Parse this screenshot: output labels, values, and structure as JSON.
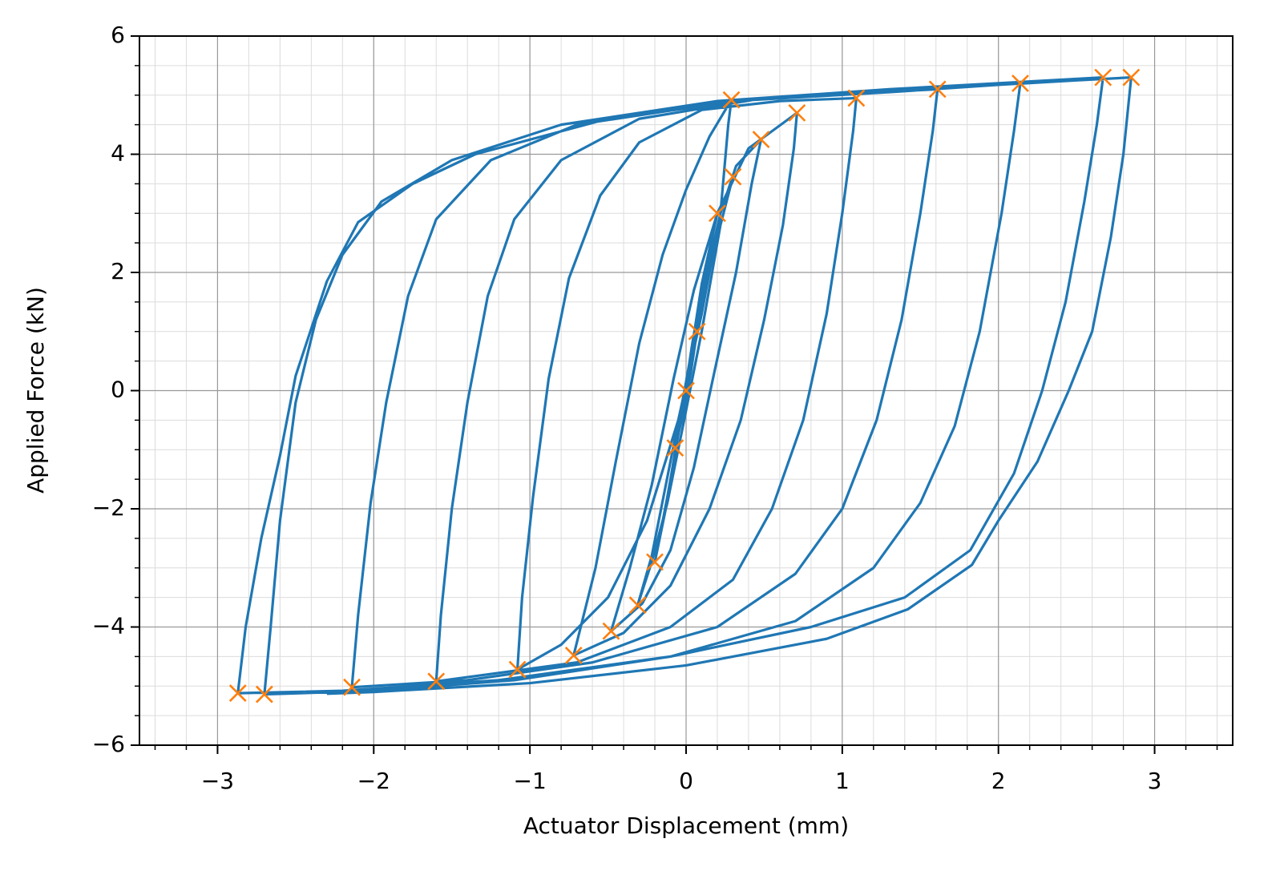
{
  "chart_data": {
    "type": "line",
    "xlabel": "Actuator Displacement (mm)",
    "ylabel": "Applied Force (kN)",
    "xlim": [
      -3.5,
      3.5
    ],
    "ylim": [
      -6,
      6
    ],
    "xticks": [
      {
        "value": -3,
        "label": "−3"
      },
      {
        "value": -2,
        "label": "−2"
      },
      {
        "value": -1,
        "label": "−1"
      },
      0,
      1,
      2,
      3
    ],
    "yticks": [
      {
        "value": -6,
        "label": "−6"
      },
      {
        "value": -4,
        "label": "−4"
      },
      {
        "value": -2,
        "label": "−2"
      },
      0,
      2,
      4,
      6
    ],
    "x_minor_step": 0.2,
    "y_minor_step": 0.5,
    "grid": true,
    "series": [
      {
        "color": "#1f77b4",
        "x": [
          0,
          0.04,
          0.07,
          0.03,
          -0.02,
          -0.07,
          -0.03,
          0.03,
          0.1,
          0.2,
          0.12,
          0.04,
          -0.04,
          -0.12,
          -0.2,
          -0.13,
          -0.05,
          0.05,
          0.15,
          0.22,
          0.3,
          0.22,
          0.1,
          -0.02,
          -0.12,
          -0.22,
          -0.31,
          -0.22,
          -0.1,
          0.02,
          0.12,
          0.22,
          0.32,
          0.48,
          0.42,
          0.32,
          0.18,
          0.05,
          -0.1,
          -0.28,
          -0.48,
          -0.36,
          -0.22,
          -0.08,
          0.05,
          0.2,
          0.4,
          0.71,
          0.69,
          0.62,
          0.5,
          0.35,
          0.15,
          -0.1,
          -0.4,
          -0.72,
          -0.58,
          -0.45,
          -0.3,
          -0.15,
          0,
          0.15,
          0.29,
          0.27,
          0.22,
          0.1,
          -0.05,
          -0.25,
          -0.5,
          -0.8,
          -1.08,
          -1.05,
          -0.98,
          -0.88,
          -0.75,
          -0.55,
          -0.3,
          0.1,
          0.6,
          1.09,
          1.07,
          1.0,
          0.9,
          0.75,
          0.55,
          0.3,
          -0.1,
          -0.7,
          -1.6,
          -1.57,
          -1.5,
          -1.4,
          -1.27,
          -1.1,
          -0.8,
          -0.3,
          0.5,
          1.61,
          1.58,
          1.5,
          1.38,
          1.22,
          1.0,
          0.7,
          0.2,
          -0.6,
          -1.4,
          -2.14,
          -2.1,
          -2.02,
          -1.92,
          -1.78,
          -1.6,
          -1.25,
          -0.7,
          0.3,
          1.3,
          2.14,
          2.1,
          2.02,
          1.88,
          1.72,
          1.5,
          1.2,
          0.7,
          -0.1,
          -1.1,
          -2.0,
          -2.7,
          -2.66,
          -2.6,
          -2.5,
          -2.37,
          -2.2,
          -1.95,
          -1.5,
          -0.8,
          0.2,
          1.3,
          2.67,
          2.63,
          2.55,
          2.43,
          2.28,
          2.1,
          1.82,
          1.4,
          0.8,
          -0.1,
          -1.2,
          -2.2,
          -2.87,
          -2.82,
          -2.72,
          -2.6,
          -2.5,
          -2.3,
          -2.1,
          -1.75,
          -1.35,
          -0.5,
          0.5,
          1.5,
          2.5,
          2.85,
          2.8,
          2.72,
          2.6,
          2.45,
          2.25,
          2.0,
          1.83,
          1.42,
          0.9,
          0,
          -1,
          -2,
          -2.3
        ],
        "values": [
          0,
          0.5,
          1.0,
          0.3,
          -0.4,
          -0.97,
          -0.3,
          0.6,
          1.8,
          3.0,
          2.0,
          0.8,
          -0.6,
          -1.8,
          -2.9,
          -2.0,
          -0.7,
          0.8,
          2.2,
          3.0,
          3.62,
          2.8,
          1.0,
          -0.6,
          -1.9,
          -2.9,
          -3.63,
          -2.8,
          -1.2,
          0.4,
          1.8,
          3.0,
          3.8,
          4.25,
          3.5,
          2.0,
          0.3,
          -1.3,
          -2.7,
          -3.6,
          -4.07,
          -3.0,
          -1.6,
          0.2,
          1.7,
          3.0,
          4.1,
          4.7,
          4.1,
          2.8,
          1.2,
          -0.5,
          -2.0,
          -3.3,
          -4.1,
          -4.48,
          -3.0,
          -1.2,
          0.8,
          2.3,
          3.4,
          4.3,
          4.92,
          4.5,
          3.0,
          1.3,
          -0.5,
          -2.2,
          -3.5,
          -4.3,
          -4.72,
          -3.5,
          -1.8,
          0.2,
          1.9,
          3.3,
          4.2,
          4.75,
          4.9,
          4.95,
          4.4,
          3.0,
          1.3,
          -0.5,
          -2.0,
          -3.2,
          -4.0,
          -4.6,
          -4.92,
          -3.8,
          -2.0,
          -0.2,
          1.6,
          2.9,
          3.9,
          4.6,
          4.95,
          5.1,
          4.4,
          3.0,
          1.2,
          -0.5,
          -2.0,
          -3.1,
          -4.0,
          -4.6,
          -4.9,
          -5.02,
          -3.8,
          -1.9,
          -0.2,
          1.6,
          2.9,
          3.9,
          4.5,
          4.9,
          5.05,
          5.2,
          4.4,
          3.0,
          1.0,
          -0.6,
          -1.9,
          -3.0,
          -3.9,
          -4.5,
          -4.9,
          -5.08,
          -5.14,
          -4.0,
          -2.2,
          -0.2,
          1.2,
          2.3,
          3.2,
          3.9,
          4.5,
          4.9,
          5.1,
          5.3,
          4.5,
          3.2,
          1.5,
          0,
          -1.4,
          -2.7,
          -3.5,
          -4.0,
          -4.5,
          -4.9,
          -5.08,
          -5.12,
          -4.0,
          -2.5,
          -1.1,
          0.25,
          1.85,
          2.85,
          3.5,
          4.0,
          4.6,
          4.95,
          5.1,
          5.25,
          5.3,
          4.0,
          2.6,
          1.0,
          0,
          -1.2,
          -2.2,
          -2.95,
          -3.7,
          -4.2,
          -4.65,
          -4.95,
          -5.1,
          -5.13
        ]
      },
      {
        "color": "#ff7f0e",
        "marker": "x",
        "x": [
          0,
          0.07,
          -0.07,
          0.2,
          -0.2,
          0.3,
          -0.31,
          0.48,
          -0.48,
          0.71,
          -0.72,
          0.29,
          -1.08,
          1.09,
          -1.6,
          1.61,
          -2.14,
          2.14,
          -2.7,
          2.67,
          -2.87,
          2.85
        ],
        "values": [
          0,
          1.0,
          -0.97,
          3.0,
          -2.9,
          3.62,
          -3.63,
          4.25,
          -4.07,
          4.7,
          -4.48,
          4.92,
          -4.72,
          4.95,
          -4.92,
          5.1,
          -5.02,
          5.2,
          -5.14,
          5.3,
          -5.12,
          5.3
        ]
      }
    ]
  }
}
